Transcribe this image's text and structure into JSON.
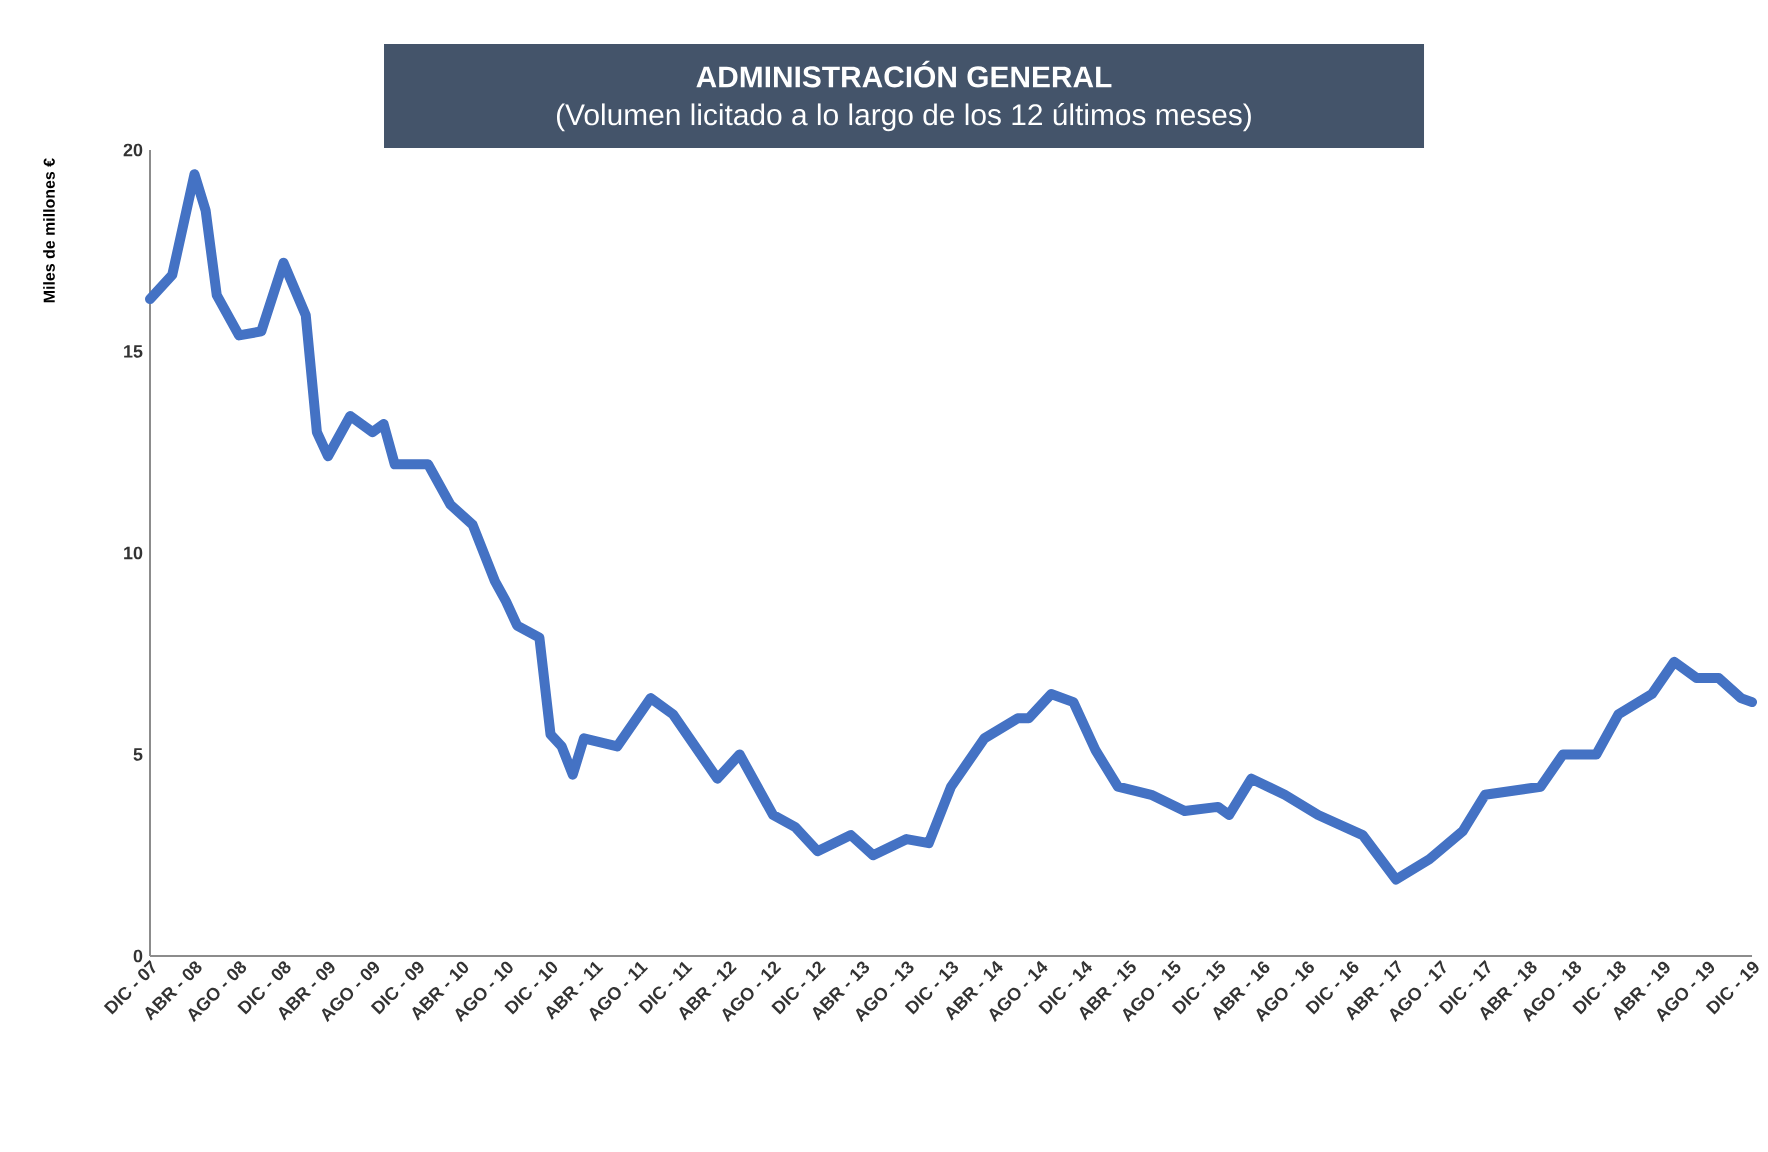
{
  "chart_data": {
    "type": "line",
    "title": "ADMINISTRACIÓN GENERAL",
    "subtitle": "(Volumen licitado a lo largo de los 12 últimos meses)",
    "ylabel": "Miles de millones €",
    "x": [
      "2007-12",
      "2008-02",
      "2008-04",
      "2008-05",
      "2008-06",
      "2008-08",
      "2008-10",
      "2008-12",
      "2009-02",
      "2009-03",
      "2009-04",
      "2009-06",
      "2009-08",
      "2009-09",
      "2009-10",
      "2010-01",
      "2010-03",
      "2010-05",
      "2010-07",
      "2010-08",
      "2010-09",
      "2010-11",
      "2010-12",
      "2011-01",
      "2011-02",
      "2011-03",
      "2011-06",
      "2011-09",
      "2011-11",
      "2012-01",
      "2012-03",
      "2012-05",
      "2012-08",
      "2012-10",
      "2012-12",
      "2013-03",
      "2013-05",
      "2013-08",
      "2013-10",
      "2013-12",
      "2014-03",
      "2014-06",
      "2014-07",
      "2014-09",
      "2014-11",
      "2015-01",
      "2015-03",
      "2015-06",
      "2015-09",
      "2015-12",
      "2016-01",
      "2016-03",
      "2016-06",
      "2016-09",
      "2017-01",
      "2017-04",
      "2017-07",
      "2017-10",
      "2017-12",
      "2018-05",
      "2018-07",
      "2018-10",
      "2018-12",
      "2019-03",
      "2019-05",
      "2019-07",
      "2019-09",
      "2019-11",
      "2019-12"
    ],
    "series": [
      {
        "color": "#4472c4",
        "values": [
          16.3,
          16.9,
          19.4,
          18.5,
          16.4,
          15.4,
          15.5,
          17.2,
          15.9,
          13.0,
          12.4,
          13.4,
          13.0,
          13.2,
          12.2,
          12.2,
          11.2,
          10.7,
          9.3,
          8.8,
          8.2,
          7.9,
          5.5,
          5.2,
          4.5,
          5.4,
          5.2,
          6.4,
          6.0,
          5.2,
          4.4,
          5.0,
          3.5,
          3.2,
          2.6,
          3.0,
          2.5,
          2.9,
          2.8,
          4.2,
          5.4,
          5.9,
          5.9,
          6.5,
          6.3,
          5.1,
          4.2,
          4.0,
          3.6,
          3.7,
          3.5,
          4.4,
          4.0,
          3.5,
          3.0,
          1.9,
          2.4,
          3.1,
          4.0,
          4.2,
          5.0,
          5.0,
          6.0,
          6.5,
          7.3,
          6.9,
          6.9,
          6.4,
          6.3
        ]
      }
    ],
    "xlim": [
      "2007-12",
      "2019-12"
    ],
    "xticks": [
      {
        "value": "2007-12",
        "label": "DIC - 07"
      },
      {
        "value": "2008-04",
        "label": "ABR - 08"
      },
      {
        "value": "2008-08",
        "label": "AGO - 08"
      },
      {
        "value": "2008-12",
        "label": "DIC - 08"
      },
      {
        "value": "2009-04",
        "label": "ABR - 09"
      },
      {
        "value": "2009-08",
        "label": "AGO - 09"
      },
      {
        "value": "2009-12",
        "label": "DIC - 09"
      },
      {
        "value": "2010-04",
        "label": "ABR - 10"
      },
      {
        "value": "2010-08",
        "label": "AGO - 10"
      },
      {
        "value": "2010-12",
        "label": "DIC - 10"
      },
      {
        "value": "2011-04",
        "label": "ABR - 11"
      },
      {
        "value": "2011-08",
        "label": "AGO - 11"
      },
      {
        "value": "2011-12",
        "label": "DIC - 11"
      },
      {
        "value": "2012-04",
        "label": "ABR - 12"
      },
      {
        "value": "2012-08",
        "label": "AGO - 12"
      },
      {
        "value": "2012-12",
        "label": "DIC - 12"
      },
      {
        "value": "2013-04",
        "label": "ABR - 13"
      },
      {
        "value": "2013-08",
        "label": "AGO - 13"
      },
      {
        "value": "2013-12",
        "label": "DIC - 13"
      },
      {
        "value": "2014-04",
        "label": "ABR - 14"
      },
      {
        "value": "2014-08",
        "label": "AGO - 14"
      },
      {
        "value": "2014-12",
        "label": "DIC - 14"
      },
      {
        "value": "2015-04",
        "label": "ABR - 15"
      },
      {
        "value": "2015-08",
        "label": "AGO - 15"
      },
      {
        "value": "2015-12",
        "label": "DIC - 15"
      },
      {
        "value": "2016-04",
        "label": "ABR - 16"
      },
      {
        "value": "2016-08",
        "label": "AGO - 16"
      },
      {
        "value": "2016-12",
        "label": "DIC - 16"
      },
      {
        "value": "2017-04",
        "label": "ABR - 17"
      },
      {
        "value": "2017-08",
        "label": "AGO - 17"
      },
      {
        "value": "2017-12",
        "label": "DIC - 17"
      },
      {
        "value": "2018-04",
        "label": "ABR - 18"
      },
      {
        "value": "2018-08",
        "label": "AGO - 18"
      },
      {
        "value": "2018-12",
        "label": "DIC - 18"
      },
      {
        "value": "2019-04",
        "label": "ABR - 19"
      },
      {
        "value": "2019-08",
        "label": "AGO - 19"
      },
      {
        "value": "2019-12",
        "label": "DIC - 19"
      }
    ],
    "ylim": [
      0,
      20
    ],
    "yticks": [
      0,
      5,
      10,
      15,
      20
    ],
    "line_style": "solid"
  }
}
